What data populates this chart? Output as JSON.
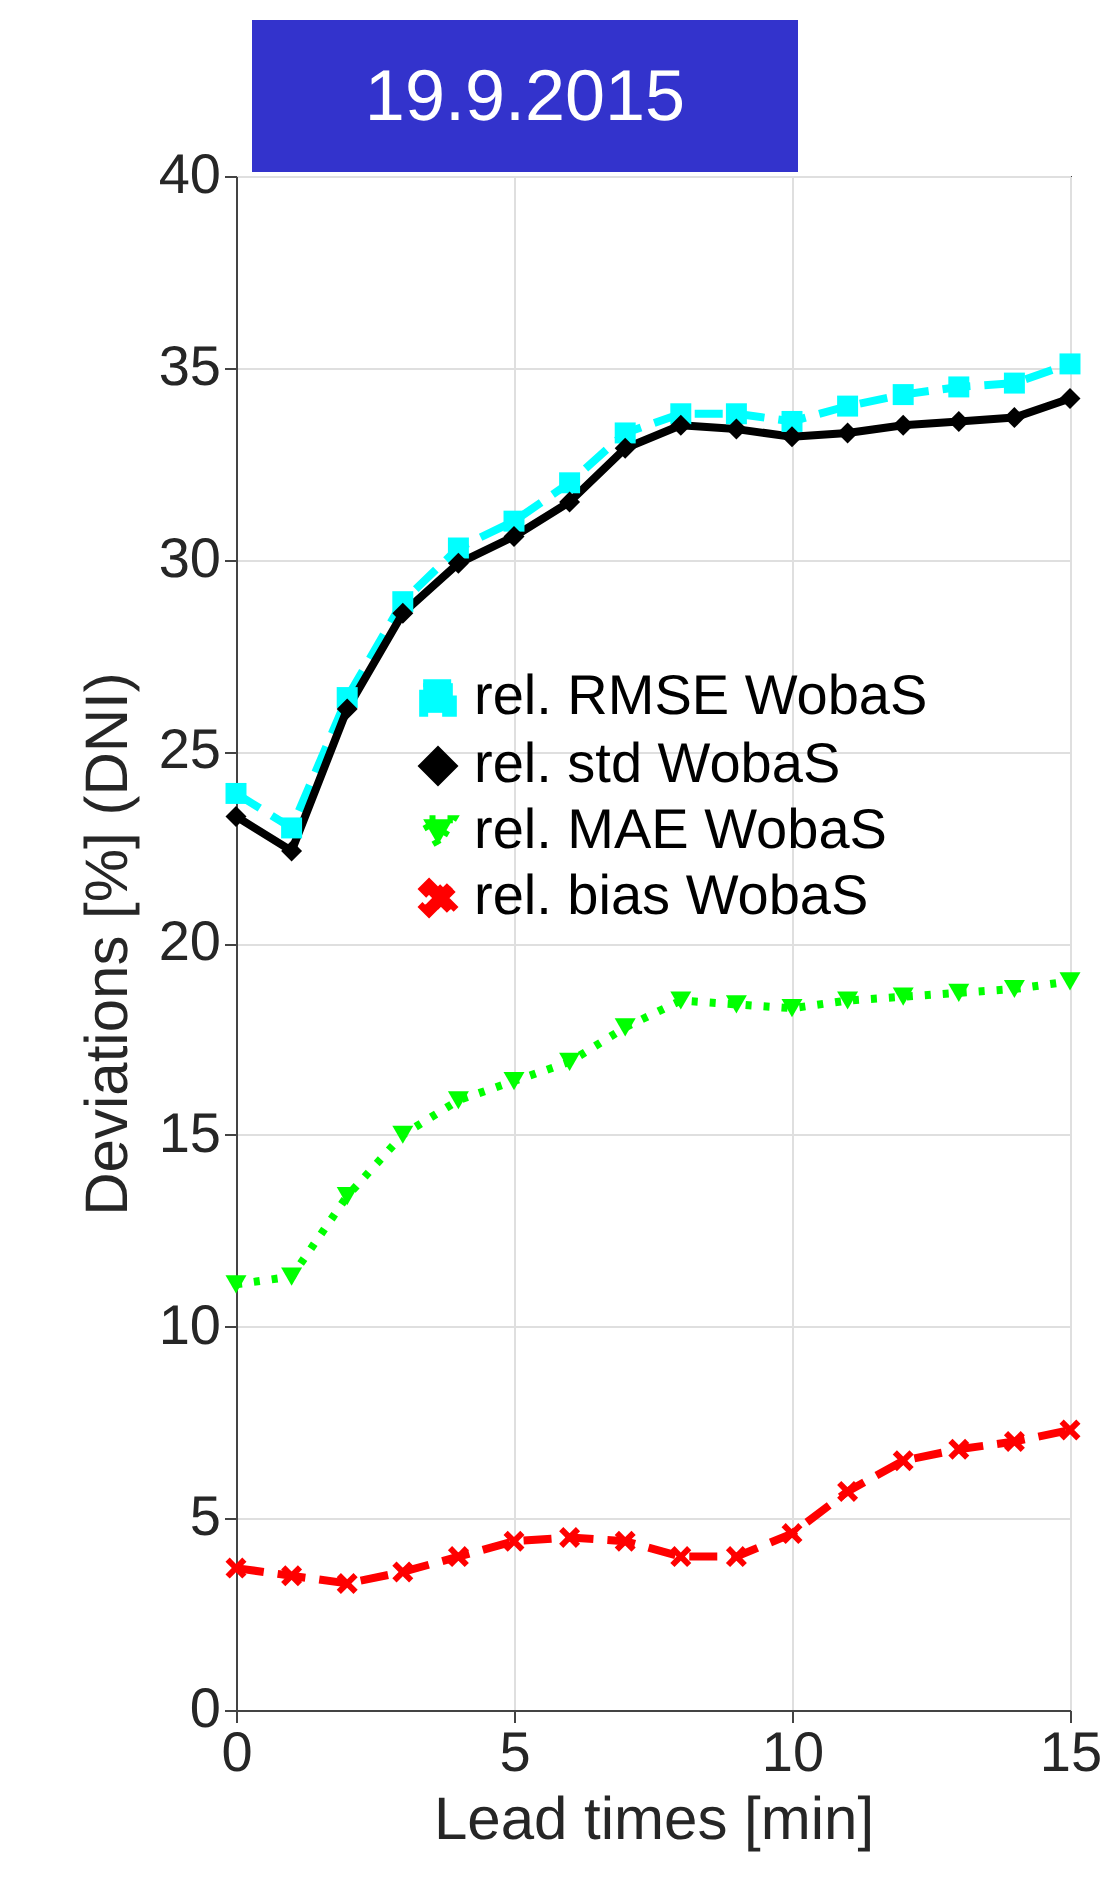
{
  "chart_data": {
    "type": "line",
    "title": "19.9.2015",
    "xlabel": "Lead times [min]",
    "ylabel": "Deviations [%] (DNI)",
    "x": [
      0,
      1,
      2,
      3,
      4,
      5,
      6,
      7,
      8,
      9,
      10,
      11,
      12,
      13,
      14,
      15
    ],
    "xlim": [
      0,
      15
    ],
    "xticks": [
      0,
      5,
      10,
      15
    ],
    "ylim": [
      0,
      40
    ],
    "yticks": [
      0,
      5,
      10,
      15,
      20,
      25,
      30,
      35,
      40
    ],
    "grid": true,
    "legend": "right",
    "series": [
      {
        "name": "rel. RMSE WobaS",
        "color": "#00ffff",
        "marker": "square",
        "line_style": "dashed",
        "values": [
          23.9,
          23.0,
          26.4,
          28.9,
          30.3,
          31.0,
          32.0,
          33.3,
          33.8,
          33.8,
          33.6,
          34.0,
          34.3,
          34.5,
          34.6,
          35.1
        ]
      },
      {
        "name": "rel. std WobaS",
        "color": "#000000",
        "marker": "diamond",
        "line_style": "solid",
        "values": [
          23.3,
          22.4,
          26.1,
          28.6,
          29.9,
          30.6,
          31.5,
          32.9,
          33.5,
          33.4,
          33.2,
          33.3,
          33.5,
          33.6,
          33.7,
          34.2
        ]
      },
      {
        "name": "rel. MAE WobaS",
        "color": "#00ff00",
        "marker": "triangle",
        "line_style": "dotted",
        "values": [
          11.1,
          11.3,
          13.4,
          15.0,
          15.9,
          16.4,
          16.9,
          17.8,
          18.5,
          18.4,
          18.3,
          18.5,
          18.6,
          18.7,
          18.8,
          19.0
        ]
      },
      {
        "name": "rel. bias WobaS",
        "color": "#ff0000",
        "marker": "cross",
        "line_style": "dashed",
        "values": [
          3.7,
          3.5,
          3.3,
          3.6,
          4.0,
          4.4,
          4.5,
          4.4,
          4.0,
          4.0,
          4.6,
          5.7,
          6.5,
          6.8,
          7.0,
          7.3
        ]
      }
    ]
  }
}
